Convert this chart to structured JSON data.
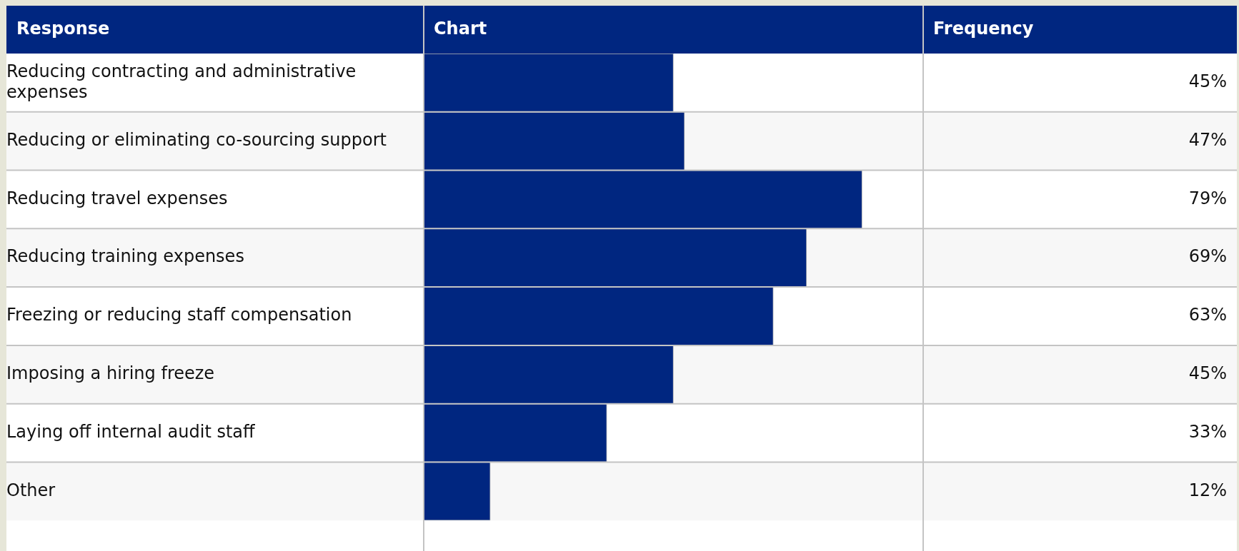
{
  "chart_data": {
    "type": "bar",
    "orientation": "horizontal",
    "annotations": [
      "Response",
      "Chart",
      "Frequency"
    ],
    "categories": [
      "Reducing contracting and administrative expenses",
      "Reducing or eliminating co-sourcing support",
      "Reducing travel expenses",
      "Reducing training expenses",
      "Freezing or reducing staff compensation",
      "Imposing a hiring freeze",
      "Laying off internal audit staff",
      "Other"
    ],
    "values": [
      45,
      47,
      79,
      69,
      63,
      45,
      33,
      12
    ],
    "value_labels": [
      "45%",
      "47%",
      "79%",
      "69%",
      "63%",
      "45%",
      "33%",
      "12%"
    ],
    "color": "#002680",
    "xlim": [
      0,
      90
    ],
    "tick_labels": "y"
  }
}
